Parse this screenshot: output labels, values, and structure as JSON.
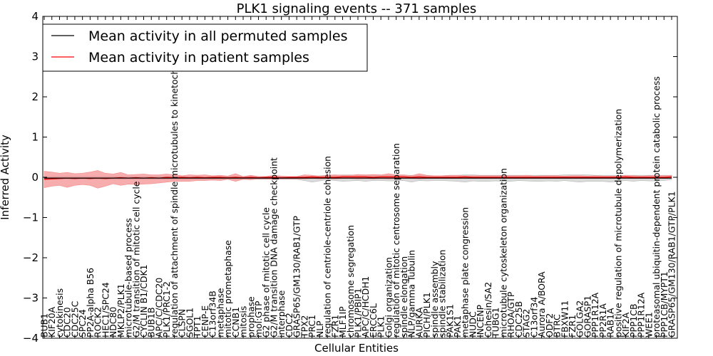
{
  "chart_data": {
    "type": "line",
    "title": "PLK1 signaling events -- 371 samples",
    "xlabel": "Cellular Entities",
    "ylabel": "Inferred Activity",
    "ylim": [
      -4,
      4
    ],
    "yticks": [
      4,
      3,
      2,
      1,
      0,
      -1,
      -2,
      -3,
      -4
    ],
    "ytick_labels": [
      "4",
      "3",
      "2",
      "1",
      "0",
      "−1",
      "−2",
      "−3",
      "−4"
    ],
    "legend": {
      "location": "upper-left",
      "entries": [
        {
          "label": "Mean activity in all permuted samples",
          "color": "#000000"
        },
        {
          "label": "Mean activity in patient samples",
          "color": "#ff0000"
        }
      ]
    },
    "categories": [
      "BUB1",
      "KIF20A",
      "cytokinesis",
      "CDC20",
      "CDC25C",
      "SPC24",
      "PP2A-alpha B56",
      "ROCK2",
      "HEC1/SPC24",
      "NDC80",
      "MKLP2/PLK1",
      "microtubule-based process",
      "G2/M transition of mitotic cell cycle",
      "CYCLIN B1/CDK1",
      "BUB1B",
      "APC/C/CDC20",
      "PLK1/PRC1-2",
      "regulation of attachment of spindle microtubules to kinetochore",
      "CLSPN",
      "SGOL1",
      "TPT1",
      "CENP-E",
      "C13orf34B",
      "metaphase",
      "mitotic prometaphase",
      "CCNB1",
      "mitosis",
      "prophase",
      "mol:GTP",
      "G2 phase of mitotic cell cycle",
      "G2/M transition DNA damage checkpoint",
      "interphase",
      "CDC2",
      "GRASP65/GM130/RAB1/GTP",
      "TPX2",
      "PRC1",
      "NLP",
      "regulation of centriole-centriole cohesion",
      "FZR1",
      "MLF1IP",
      "chromosome segregation",
      "PLK1/PBIP1",
      "APC/C/HCDH1",
      "ERCC6L",
      "PLK1",
      "Golgi organization",
      "regulation of mitotic centrosome separation",
      "spindle elongation",
      "NLP/gamma Tubulin",
      "AURKA",
      "PICH/PLK1",
      "spindle assembly",
      "spindle stabilization",
      "PAK1S1",
      "PAK1",
      "metaphase plate congression",
      "NUDC",
      "INCENP",
      "Cohesin/SA2",
      "TUBG1",
      "microtubule cytoskeleton organization",
      "RHOA/GTP",
      "CDC25B",
      "STAG2",
      "C13orf34",
      "Aurora A/BORA",
      "ODF2",
      "BTRC",
      "FBXW11",
      "FZR1",
      "GOLGA2",
      "GORASP1",
      "PPP1R12A",
      "PP2R1A",
      "RAB1A",
      "positive regulation of microtubule depolymerization",
      "KIF2A",
      "PPP1CB",
      "PPP1R12A",
      "WEE1",
      "proteasomal ubiquitin-dependent protein catabolic process",
      "PPP1CB/MYPT1",
      "GRASP65/GM130/RAB1/GTP/PLK1"
    ],
    "series": [
      {
        "name": "Mean activity in all permuted samples",
        "color": "#000000",
        "values": [
          -0.02,
          -0.02,
          -0.02,
          -0.02,
          -0.02,
          -0.02,
          -0.02,
          -0.02,
          -0.02,
          -0.02,
          -0.02,
          -0.02,
          -0.02,
          -0.02,
          -0.02,
          -0.02,
          -0.02,
          -0.02,
          -0.02,
          -0.02,
          -0.02,
          -0.02,
          -0.02,
          -0.02,
          -0.02,
          -0.02,
          -0.02,
          -0.02,
          -0.02,
          -0.02,
          -0.02,
          -0.02,
          -0.02,
          -0.02,
          -0.02,
          -0.02,
          -0.02,
          -0.02,
          -0.02,
          -0.02,
          -0.02,
          -0.02,
          -0.02,
          -0.02,
          -0.02,
          -0.02,
          -0.02,
          -0.02,
          -0.02,
          -0.02,
          -0.02,
          -0.02,
          -0.02,
          -0.02,
          -0.02,
          -0.02,
          -0.02,
          -0.02,
          -0.02,
          -0.02,
          -0.02,
          -0.02,
          -0.02,
          -0.02,
          -0.02,
          -0.02,
          -0.02,
          -0.02,
          -0.02,
          -0.02,
          -0.02,
          -0.02,
          -0.02,
          -0.02,
          -0.02,
          -0.02,
          -0.02,
          -0.02,
          -0.02,
          -0.02,
          -0.02,
          -0.02,
          -0.02
        ]
      },
      {
        "name": "Mean activity in patient samples",
        "color": "#ff0000",
        "values": [
          -0.05,
          -0.04,
          -0.03,
          -0.02,
          -0.03,
          -0.02,
          -0.03,
          -0.02,
          -0.03,
          -0.02,
          -0.01,
          -0.02,
          -0.01,
          -0.02,
          -0.01,
          -0.02,
          0.0,
          -0.01,
          0.0,
          -0.01,
          0.0,
          -0.01,
          0.0,
          0.0,
          -0.01,
          0.0,
          -0.01,
          0.0,
          -0.01,
          0.0,
          0.0,
          -0.01,
          0.0,
          0.0,
          0.0,
          0.01,
          0.0,
          0.0,
          0.0,
          0.01,
          0.01,
          0.01,
          0.01,
          0.0,
          0.01,
          0.01,
          0.01,
          0.01,
          0.0,
          0.01,
          0.0,
          0.0,
          0.0,
          0.0,
          0.0,
          0.01,
          0.0,
          0.0,
          0.0,
          0.0,
          0.0,
          0.0,
          0.0,
          0.0,
          0.0,
          0.0,
          0.0,
          0.0,
          0.0,
          0.0,
          0.0,
          0.0,
          0.0,
          0.0,
          0.0,
          0.0,
          0.01,
          0.0,
          0.0,
          0.0,
          0.0,
          0.0,
          0.01
        ]
      }
    ],
    "bands": [
      {
        "name": "permuted spread",
        "color": "#bbbbbb",
        "upper": [
          0.02,
          0.02,
          0.02,
          0.02,
          0.02,
          0.02,
          0.02,
          0.02,
          0.02,
          0.02,
          0.02,
          0.02,
          0.02,
          0.02,
          0.02,
          0.02,
          0.02,
          0.02,
          0.02,
          0.02,
          0.02,
          0.02,
          0.02,
          0.02,
          0.02,
          0.02,
          0.02,
          0.02,
          0.02,
          0.02,
          0.02,
          0.02,
          0.02,
          0.02,
          0.02,
          0.02,
          0.04,
          0.05,
          0.05,
          0.06,
          0.06,
          0.05,
          0.05,
          0.05,
          0.05,
          0.05,
          0.05,
          0.05,
          0.05,
          0.05,
          0.04,
          0.04,
          0.04,
          0.05,
          0.05,
          0.06,
          0.06,
          0.05,
          0.05,
          0.05,
          0.05,
          0.05,
          0.05,
          0.05,
          0.05,
          0.05,
          0.05,
          0.05,
          0.06,
          0.06,
          0.06,
          0.06,
          0.05,
          0.05,
          0.05,
          0.05,
          0.05,
          0.05,
          0.05,
          0.05,
          0.05,
          0.05,
          0.05
        ],
        "lower": [
          -0.05,
          -0.05,
          -0.05,
          -0.05,
          -0.05,
          -0.05,
          -0.05,
          -0.05,
          -0.05,
          -0.05,
          -0.05,
          -0.05,
          -0.05,
          -0.05,
          -0.05,
          -0.05,
          -0.05,
          -0.05,
          -0.05,
          -0.05,
          -0.05,
          -0.05,
          -0.05,
          -0.05,
          -0.05,
          -0.05,
          -0.05,
          -0.05,
          -0.05,
          -0.05,
          -0.05,
          -0.05,
          -0.05,
          -0.05,
          -0.08,
          -0.12,
          -0.09,
          -0.06,
          -0.08,
          -0.1,
          -0.09,
          -0.08,
          -0.1,
          -0.08,
          -0.08,
          -0.09,
          -0.09,
          -0.08,
          -0.12,
          -0.08,
          -0.09,
          -0.08,
          -0.08,
          -0.09,
          -0.1,
          -0.12,
          -0.09,
          -0.1,
          -0.1,
          -0.09,
          -0.1,
          -0.1,
          -0.08,
          -0.09,
          -0.1,
          -0.1,
          -0.09,
          -0.1,
          -0.08,
          -0.1,
          -0.12,
          -0.1,
          -0.1,
          -0.1,
          -0.12,
          -0.1,
          -0.08,
          -0.1,
          -0.08,
          -0.09,
          -0.09,
          -0.08,
          -0.06
        ]
      },
      {
        "name": "patient spread",
        "color": "#f48a8a",
        "upper": [
          0.15,
          0.13,
          0.1,
          0.12,
          0.09,
          0.1,
          0.13,
          0.17,
          0.1,
          0.08,
          0.12,
          0.06,
          0.07,
          0.08,
          0.06,
          0.06,
          0.08,
          0.06,
          0.04,
          0.06,
          0.05,
          0.06,
          0.04,
          0.05,
          0.03,
          0.09,
          0.02,
          0.05,
          0.02,
          0.02,
          0.05,
          0.03,
          0.02,
          0.02,
          0.06,
          0.05,
          0.03,
          0.05,
          0.06,
          0.05,
          0.05,
          0.07,
          0.06,
          0.07,
          0.06,
          0.09,
          0.06,
          0.06,
          0.04,
          0.09,
          0.05,
          0.04,
          0.04,
          0.05,
          0.05,
          0.04,
          0.04,
          0.04,
          0.04,
          0.04,
          0.04,
          0.04,
          0.04,
          0.05,
          0.03,
          0.04,
          0.04,
          0.04,
          0.03,
          0.04,
          0.04,
          0.03,
          0.04,
          0.03,
          0.03,
          0.03,
          0.05,
          0.04,
          0.03,
          0.04,
          0.05,
          0.04,
          0.05
        ],
        "lower": [
          -0.26,
          -0.22,
          -0.2,
          -0.25,
          -0.2,
          -0.18,
          -0.2,
          -0.27,
          -0.22,
          -0.16,
          -0.2,
          -0.17,
          -0.18,
          -0.17,
          -0.16,
          -0.14,
          -0.12,
          -0.1,
          -0.1,
          -0.1,
          -0.08,
          -0.08,
          -0.07,
          -0.08,
          -0.05,
          -0.1,
          -0.05,
          -0.06,
          -0.04,
          -0.04,
          -0.05,
          -0.04,
          -0.04,
          -0.04,
          -0.04,
          -0.03,
          -0.04,
          -0.03,
          -0.04,
          -0.03,
          -0.03,
          -0.04,
          -0.03,
          -0.04,
          -0.03,
          -0.04,
          -0.03,
          -0.03,
          -0.03,
          -0.04,
          -0.03,
          -0.03,
          -0.03,
          -0.03,
          -0.03,
          -0.03,
          -0.03,
          -0.03,
          -0.03,
          -0.03,
          -0.03,
          -0.03,
          -0.03,
          -0.03,
          -0.03,
          -0.03,
          -0.03,
          -0.03,
          -0.03,
          -0.03,
          -0.03,
          -0.03,
          -0.03,
          -0.03,
          -0.03,
          -0.03,
          -0.03,
          -0.03,
          -0.03,
          -0.03,
          -0.03,
          -0.03,
          -0.03
        ]
      }
    ]
  }
}
